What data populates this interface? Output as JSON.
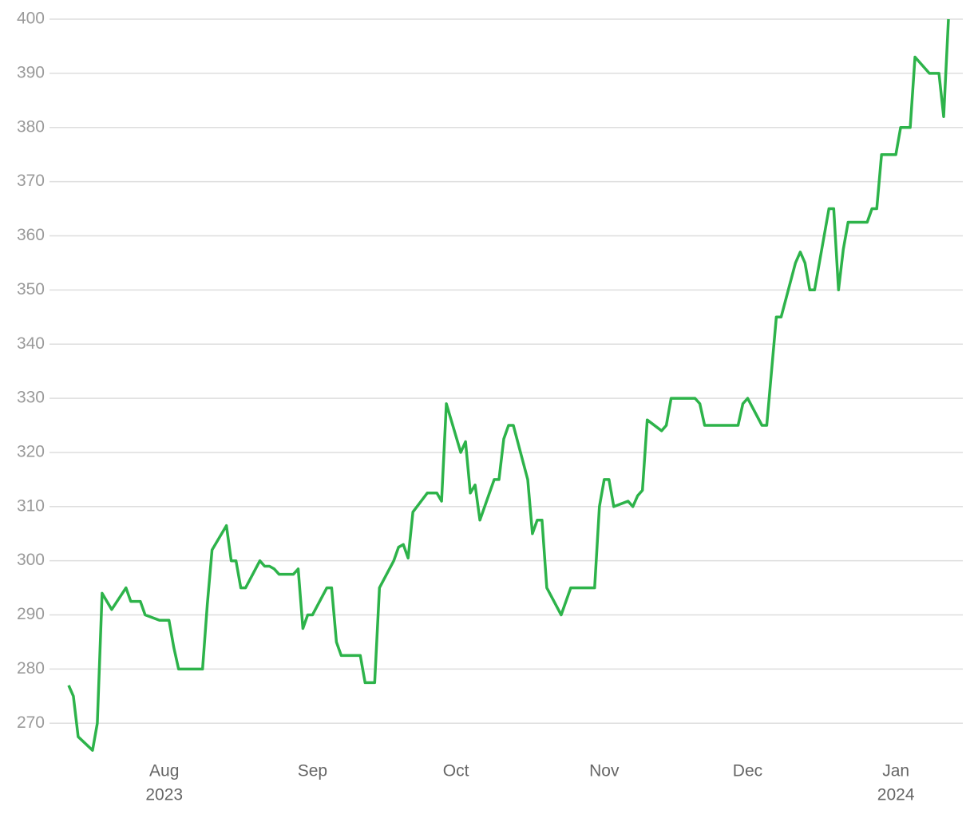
{
  "chart_data": {
    "type": "line",
    "x": [
      "2023-07-12",
      "2023-07-13",
      "2023-07-14",
      "2023-07-17",
      "2023-07-18",
      "2023-07-19",
      "2023-07-21",
      "2023-07-24",
      "2023-07-25",
      "2023-07-27",
      "2023-07-28",
      "2023-07-31",
      "2023-08-02",
      "2023-08-03",
      "2023-08-04",
      "2023-08-09",
      "2023-08-10",
      "2023-08-11",
      "2023-08-14",
      "2023-08-15",
      "2023-08-16",
      "2023-08-17",
      "2023-08-18",
      "2023-08-21",
      "2023-08-22",
      "2023-08-23",
      "2023-08-24",
      "2023-08-25",
      "2023-08-28",
      "2023-08-29",
      "2023-08-30",
      "2023-08-31",
      "2023-09-01",
      "2023-09-04",
      "2023-09-05",
      "2023-09-06",
      "2023-09-07",
      "2023-09-11",
      "2023-09-12",
      "2023-09-14",
      "2023-09-15",
      "2023-09-18",
      "2023-09-19",
      "2023-09-20",
      "2023-09-21",
      "2023-09-22",
      "2023-09-25",
      "2023-09-27",
      "2023-09-28",
      "2023-09-29",
      "2023-10-02",
      "2023-10-03",
      "2023-10-04",
      "2023-10-05",
      "2023-10-06",
      "2023-10-09",
      "2023-10-10",
      "2023-10-11",
      "2023-10-12",
      "2023-10-13",
      "2023-10-16",
      "2023-10-17",
      "2023-10-18",
      "2023-10-19",
      "2023-10-20",
      "2023-10-23",
      "2023-10-25",
      "2023-10-30",
      "2023-10-31",
      "2023-11-01",
      "2023-11-02",
      "2023-11-03",
      "2023-11-06",
      "2023-11-07",
      "2023-11-08",
      "2023-11-09",
      "2023-11-10",
      "2023-11-13",
      "2023-11-14",
      "2023-11-15",
      "2023-11-20",
      "2023-11-21",
      "2023-11-22",
      "2023-11-29",
      "2023-11-30",
      "2023-12-01",
      "2023-12-04",
      "2023-12-05",
      "2023-12-07",
      "2023-12-08",
      "2023-12-11",
      "2023-12-12",
      "2023-12-13",
      "2023-12-14",
      "2023-12-15",
      "2023-12-18",
      "2023-12-19",
      "2023-12-20",
      "2023-12-21",
      "2023-12-22",
      "2023-12-26",
      "2023-12-27",
      "2023-12-28",
      "2023-12-29",
      "2024-01-01",
      "2024-01-02",
      "2024-01-04",
      "2024-01-05",
      "2024-01-08",
      "2024-01-10",
      "2024-01-11",
      "2024-01-12"
    ],
    "series": [
      {
        "color": "#2db34a",
        "values": [
          277,
          275,
          267.5,
          265,
          270,
          294,
          291,
          295,
          292.5,
          292.5,
          290,
          289,
          289,
          284,
          280,
          280,
          292,
          302,
          306.5,
          300,
          300,
          295,
          295,
          300,
          299,
          299,
          298.5,
          297.5,
          297.5,
          298.5,
          287.5,
          290,
          290,
          295,
          295,
          285,
          282.5,
          282.5,
          277.5,
          277.5,
          295,
          300,
          302.5,
          303,
          300.5,
          309,
          312.5,
          312.5,
          311,
          329,
          320,
          322,
          312.5,
          314,
          307.5,
          315,
          315,
          322.5,
          325,
          325,
          315,
          305,
          307.5,
          307.5,
          295,
          290,
          295,
          295,
          310,
          315,
          315,
          310,
          311,
          310,
          312,
          313,
          326,
          324,
          325,
          330,
          330,
          329,
          325,
          325,
          329,
          330,
          325,
          325,
          345,
          345,
          355,
          357,
          355,
          350,
          350,
          365,
          365,
          350,
          357.5,
          362.5,
          362.5,
          365,
          365,
          375,
          375,
          380,
          380,
          393,
          390,
          390,
          382,
          400
        ]
      }
    ],
    "xlim": [
      "2023-07-08",
      "2024-01-15"
    ],
    "xticks": [
      {
        "value": "2023-08-01",
        "label": "Aug",
        "sublabel": "2023"
      },
      {
        "value": "2023-09-01",
        "label": "Sep"
      },
      {
        "value": "2023-10-01",
        "label": "Oct"
      },
      {
        "value": "2023-11-01",
        "label": "Nov"
      },
      {
        "value": "2023-12-01",
        "label": "Dec"
      },
      {
        "value": "2024-01-01",
        "label": "Jan",
        "sublabel": "2024"
      }
    ],
    "ylim": [
      264,
      400
    ],
    "yticks": [
      270,
      280,
      290,
      300,
      310,
      320,
      330,
      340,
      350,
      360,
      370,
      380,
      390,
      400
    ],
    "grid": true
  }
}
